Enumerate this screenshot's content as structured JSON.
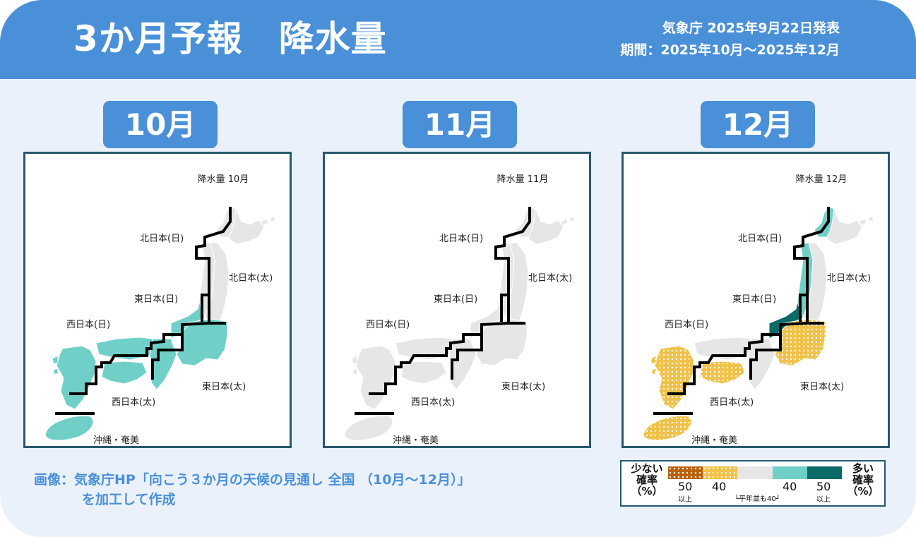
{
  "header": {
    "title": "3か月予報　降水量",
    "issued": "気象庁 2025年9月22日発表",
    "period": "期間：2025年10月～2025年12月"
  },
  "colors": {
    "header_bg": "#4a90d9",
    "background": "#eaf1fa",
    "dry_50": "#b8620f",
    "dry_40": "#f0c24a",
    "normal": "#e6e6e6",
    "wet_40": "#70d0c8",
    "wet_50": "#0a6a68",
    "boundary": "#000000"
  },
  "maps": [
    {
      "month": "10月",
      "map_title": "降水量 10月",
      "regions": {
        "hokkaido_sea": "normal",
        "hokkaido_pac": "normal",
        "tohoku_sea": "normal",
        "tohoku_pac": "normal",
        "hokuriku": "wet_40",
        "kanto": "wet_40",
        "kinki": "wet_40",
        "chugoku_sea": "wet_40",
        "shikoku": "wet_40",
        "kyushu": "wet_40",
        "okinawa": "wet_40"
      }
    },
    {
      "month": "11月",
      "map_title": "降水量 11月",
      "regions": {
        "hokkaido_sea": "normal",
        "hokkaido_pac": "normal",
        "tohoku_sea": "normal",
        "tohoku_pac": "normal",
        "hokuriku": "normal",
        "kanto": "normal",
        "kinki": "normal",
        "chugoku_sea": "normal",
        "shikoku": "normal",
        "kyushu": "normal",
        "okinawa": "normal"
      }
    },
    {
      "month": "12月",
      "map_title": "降水量 12月",
      "regions": {
        "hokkaido_sea": "wet_40",
        "hokkaido_pac": "normal",
        "tohoku_sea": "wet_40",
        "tohoku_pac": "normal",
        "hokuriku": "wet_50",
        "kanto": "dry_40",
        "kinki": "normal",
        "chugoku_sea": "normal",
        "shikoku": "dry_40",
        "kyushu": "dry_40",
        "okinawa": "dry_40"
      }
    }
  ],
  "region_labels": {
    "north_sea": "北日本(日)",
    "north_pac": "北日本(太)",
    "east_sea": "東日本(日)",
    "east_pac": "東日本(太)",
    "west_sea": "西日本(日)",
    "west_pac": "西日本(太)",
    "okinawa": "沖縄・奄美"
  },
  "credit": {
    "line1": "画像：気象庁HP「向こう３か月の天候の見通し 全国 （10月～12月）」",
    "line2": "を加工して作成"
  },
  "legend": {
    "left_label_1": "少ない",
    "left_label_2": "確率",
    "left_label_3": "（%）",
    "right_label_1": "多い",
    "right_label_2": "確率",
    "right_label_3": "（%）",
    "num_50_left": "50",
    "num_40_left": "40",
    "num_40_right": "40",
    "num_50_right": "50",
    "above_left": "以上",
    "above_right": "以上",
    "normal_label": "平年並も40"
  }
}
